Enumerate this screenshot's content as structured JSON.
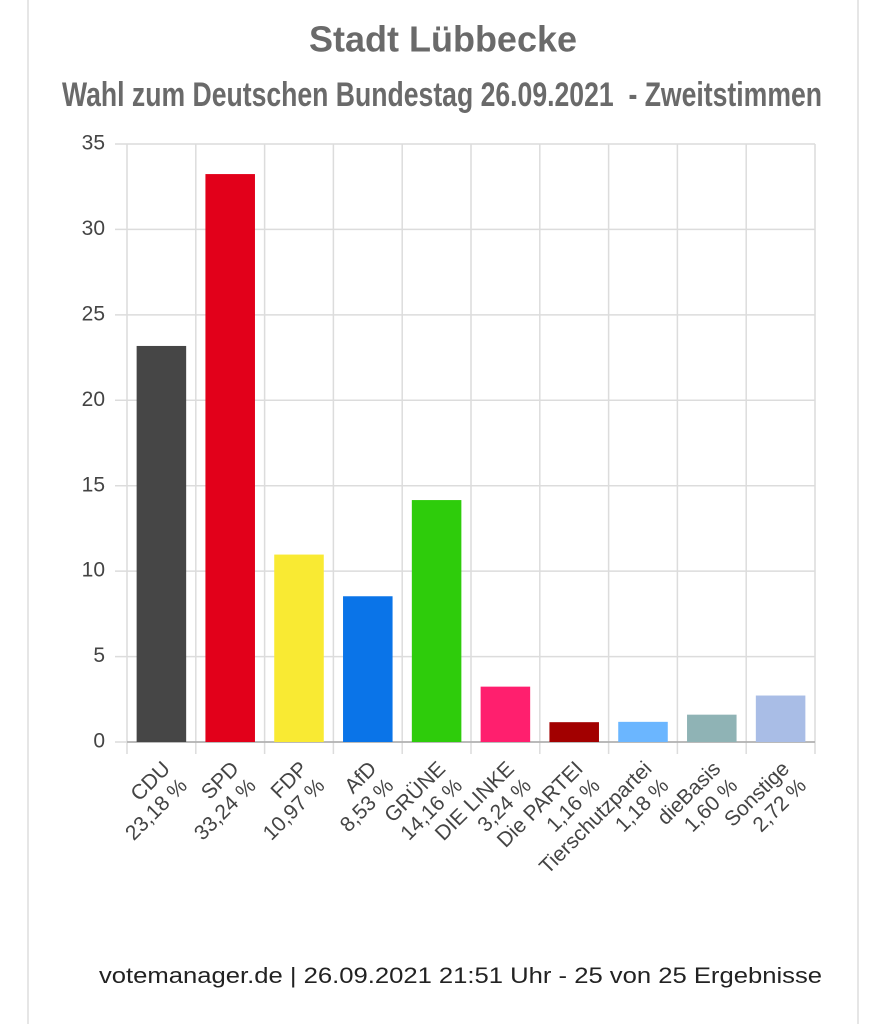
{
  "chart_data": {
    "type": "bar",
    "title": "Stadt Lübbecke",
    "subtitle": "Wahl zum Deutschen Bundestag 26.09.2021  - Zweitstimmen",
    "categories": [
      "CDU",
      "SPD",
      "FDP",
      "AfD",
      "GRÜNE",
      "DIE LINKE",
      "Die PARTEI",
      "Tierschutzpartei",
      "dieBasis",
      "Sonstige"
    ],
    "values": [
      23.18,
      33.24,
      10.97,
      8.53,
      14.16,
      3.24,
      1.16,
      1.18,
      1.6,
      2.72
    ],
    "value_labels": [
      "23,18 %",
      "33,24 %",
      "10,97 %",
      "8,53 %",
      "14,16 %",
      "3,24 %",
      "1,16 %",
      "1,18 %",
      "1,60 %",
      "2,72 %"
    ],
    "colors": [
      "#464646",
      "#e2001a",
      "#f9ea33",
      "#0a74e8",
      "#2ecc0b",
      "#ff1f6e",
      "#a20000",
      "#6bb6ff",
      "#8fb3b5",
      "#a9bde6"
    ],
    "ylim": [
      0,
      35
    ],
    "yticks": [
      0,
      5,
      10,
      15,
      20,
      25,
      30,
      35
    ],
    "grid": true,
    "footer": "votemanager.de | 26.09.2021 21:51 Uhr - 25 von 25 Ergebnisse"
  }
}
